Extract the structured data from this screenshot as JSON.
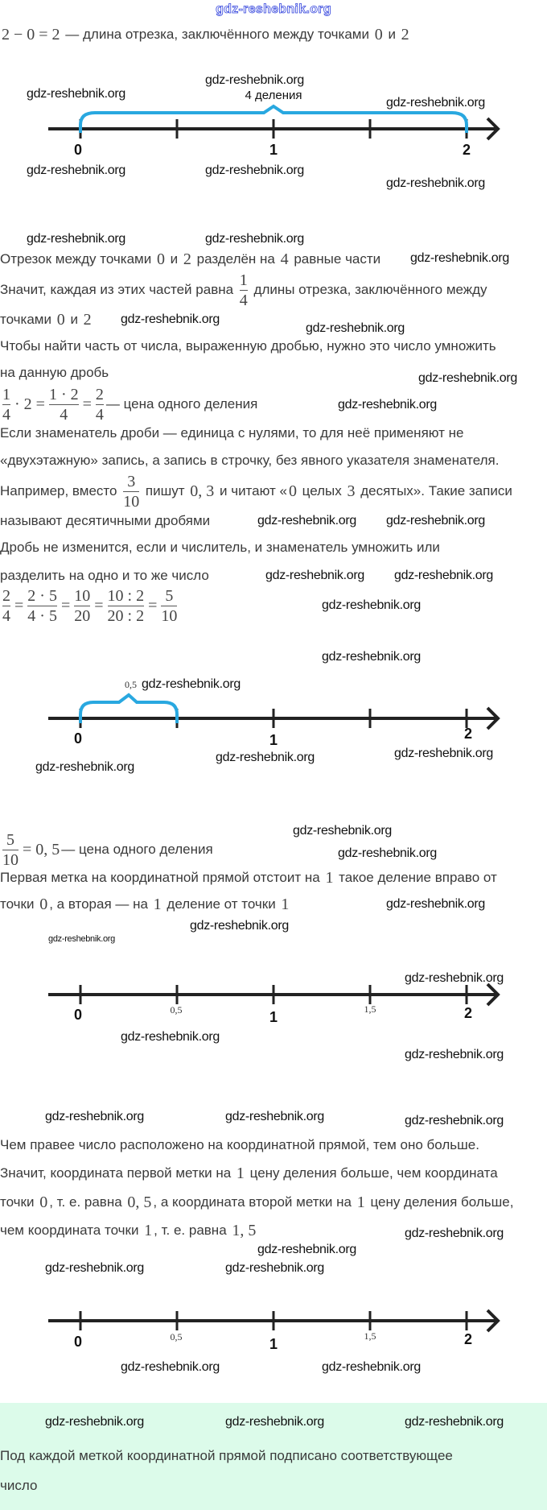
{
  "watermark": "gdz-reshebnik.org",
  "colors": {
    "brace": "#29a8e0",
    "axis": "#222222",
    "note_bg": "#dcfbea",
    "top_watermark": "#3344dd"
  },
  "lines": [
    {
      "parts": [
        {
          "m": "2 − 0 = 2"
        },
        {
          "t": " — длина отрезка, заключённого между точками "
        },
        {
          "m": "0"
        },
        {
          "t": " и "
        },
        {
          "m": "2"
        }
      ]
    },
    {
      "parts": [
        {
          "t": "Отрезок между точками "
        },
        {
          "m": "0"
        },
        {
          "t": " и "
        },
        {
          "m": "2"
        },
        {
          "t": " разделён на "
        },
        {
          "m": "4"
        },
        {
          "t": " равные части"
        }
      ]
    },
    {
      "parts": [
        {
          "t": "Значит, каждая из этих частей равна "
        },
        {
          "f": [
            "1",
            "4"
          ]
        },
        {
          "t": " длины отрезка, заключённого между"
        }
      ]
    },
    {
      "parts": [
        {
          "t": "точками "
        },
        {
          "m": "0"
        },
        {
          "t": " и "
        },
        {
          "m": "2"
        }
      ]
    },
    {
      "parts": [
        {
          "t": "Чтобы найти часть от числа, выраженную дробью, нужно это число умножить"
        }
      ]
    },
    {
      "parts": [
        {
          "t": "на данную дробь"
        }
      ]
    },
    {
      "parts": [
        {
          "f": [
            "1",
            "4"
          ]
        },
        {
          "m": "· 2 ="
        },
        {
          "f": [
            "1 · 2",
            "4"
          ]
        },
        {
          "m": "="
        },
        {
          "f": [
            "2",
            "4"
          ]
        },
        {
          "t": "— цена одного деления"
        }
      ]
    },
    {
      "parts": [
        {
          "t": "Если знаменатель дроби — единица с нулями, то для неё применяют не"
        }
      ]
    },
    {
      "parts": [
        {
          "t": "«двухэтажную» запись, а запись в строчку, без явного указателя знаменателя."
        }
      ]
    },
    {
      "parts": [
        {
          "t": "Например, вместо "
        },
        {
          "f": [
            "3",
            "10"
          ]
        },
        {
          "t": " пишут "
        },
        {
          "m": "0, 3"
        },
        {
          "t": " и читают «"
        },
        {
          "m": "0"
        },
        {
          "t": " целых "
        },
        {
          "m": "3"
        },
        {
          "t": " десятых». Такие записи"
        }
      ]
    },
    {
      "parts": [
        {
          "t": "называют десятичными дробями"
        }
      ]
    },
    {
      "parts": [
        {
          "t": "Дробь не изменится, если и числитель, и знаменатель умножить или"
        }
      ]
    },
    {
      "parts": [
        {
          "t": "разделить на одно и то же число"
        }
      ]
    },
    {
      "parts": [
        {
          "f": [
            "2",
            "4"
          ]
        },
        {
          "m": "="
        },
        {
          "f": [
            "2 · 5",
            "4 · 5"
          ]
        },
        {
          "m": "="
        },
        {
          "f": [
            "10",
            "20"
          ]
        },
        {
          "m": "="
        },
        {
          "f": [
            "10 : 2",
            "20 : 2"
          ]
        },
        {
          "m": "="
        },
        {
          "f": [
            "5",
            "10"
          ]
        }
      ]
    },
    {
      "parts": [
        {
          "f": [
            "5",
            "10"
          ]
        },
        {
          "m": "= 0, 5"
        },
        {
          "t": "— цена одного деления"
        }
      ]
    },
    {
      "parts": [
        {
          "t": "Первая метка на координатной прямой отстоит на "
        },
        {
          "m": "1"
        },
        {
          "t": " такое деление вправо от"
        }
      ]
    },
    {
      "parts": [
        {
          "t": "точки "
        },
        {
          "m": "0"
        },
        {
          "t": ", а вторая — на "
        },
        {
          "m": "1"
        },
        {
          "t": " деление от точки "
        },
        {
          "m": "1"
        }
      ]
    },
    {
      "parts": [
        {
          "t": "Чем правее число расположено на координатной прямой, тем оно больше."
        }
      ]
    },
    {
      "parts": [
        {
          "t": "Значит, координата первой метки на "
        },
        {
          "m": "1"
        },
        {
          "t": " цену деления больше, чем координата"
        }
      ]
    },
    {
      "parts": [
        {
          "t": "точки "
        },
        {
          "m": "0"
        },
        {
          "t": ", т. е. равна "
        },
        {
          "m": "0, 5"
        },
        {
          "t": ", а координата второй метки на "
        },
        {
          "m": "1"
        },
        {
          "t": " цену деления больше,"
        }
      ]
    },
    {
      "parts": [
        {
          "t": "чем координата точки "
        },
        {
          "m": "1"
        },
        {
          "t": ", т. е. равна "
        },
        {
          "m": "1, 5"
        }
      ]
    },
    {
      "parts": [
        {
          "t": "Под каждой меткой координатной прямой подписано соответствующее"
        }
      ]
    },
    {
      "parts": [
        {
          "t": "число"
        }
      ]
    }
  ],
  "number_lines": [
    {
      "brace_label": "4 деления",
      "labels": [
        "0",
        "1",
        "2"
      ]
    },
    {
      "brace_label": "0,5",
      "labels": [
        "0",
        "1",
        "2"
      ]
    },
    {
      "labels": [
        "0",
        "0,5",
        "1",
        "1,5",
        "2"
      ]
    },
    {
      "labels": [
        "0",
        "0,5",
        "1",
        "1,5",
        "2"
      ]
    }
  ]
}
